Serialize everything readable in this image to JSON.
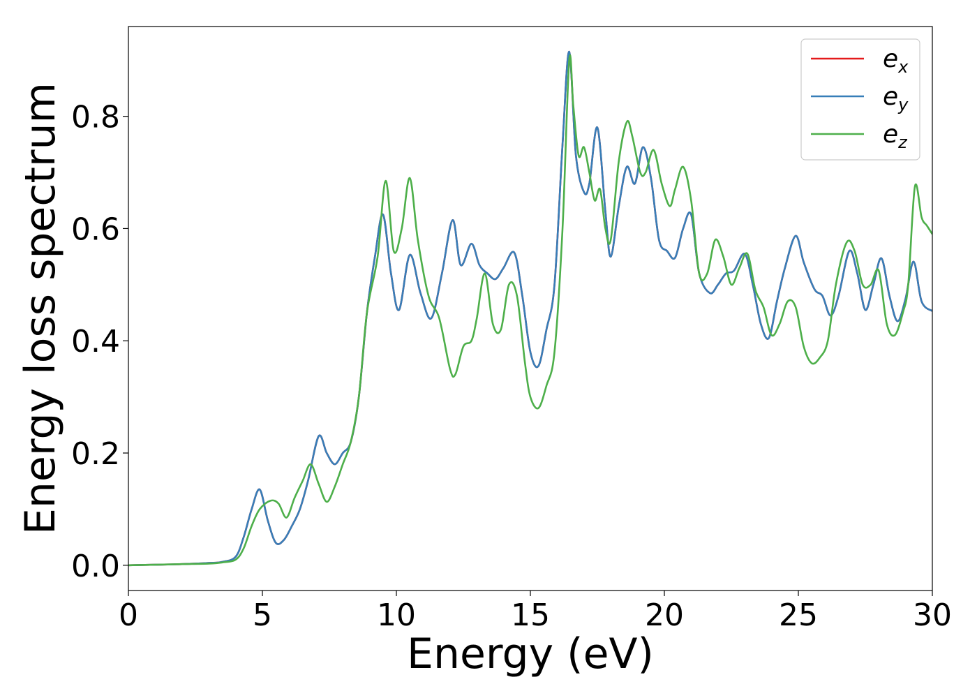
{
  "chart_data": {
    "type": "line",
    "xlabel": "Energy (eV)",
    "ylabel": "Energy loss spectrum",
    "xlim": [
      0,
      30
    ],
    "ylim": [
      -0.045,
      0.96
    ],
    "xticks": [
      0,
      5,
      10,
      15,
      20,
      25,
      30
    ],
    "xtick_labels": [
      "0",
      "5",
      "10",
      "15",
      "20",
      "25",
      "30"
    ],
    "yticks": [
      0.0,
      0.2,
      0.4,
      0.6,
      0.8
    ],
    "ytick_labels": [
      "0.0",
      "0.2",
      "0.4",
      "0.6",
      "0.8"
    ],
    "grid": false,
    "legend_position": "top-right",
    "series": [
      {
        "name": "e",
        "subscript": "x",
        "color": "#e41a1c",
        "x": [
          0,
          1,
          2,
          3,
          3.5,
          4,
          4.3,
          4.6,
          4.9,
          5.2,
          5.5,
          5.8,
          6.1,
          6.4,
          6.7,
          7.1,
          7.4,
          7.7,
          8.0,
          8.3,
          8.6,
          8.9,
          9.2,
          9.5,
          9.8,
          10.1,
          10.5,
          10.9,
          11.3,
          11.7,
          12.1,
          12.4,
          12.8,
          13.1,
          13.4,
          13.7,
          14.0,
          14.4,
          14.7,
          15.0,
          15.3,
          15.6,
          15.9,
          16.2,
          16.45,
          16.7,
          17.0,
          17.2,
          17.5,
          17.8,
          18.0,
          18.3,
          18.6,
          18.9,
          19.2,
          19.5,
          19.8,
          20.1,
          20.4,
          20.7,
          21.0,
          21.3,
          21.7,
          22.0,
          22.3,
          22.6,
          23.0,
          23.3,
          23.6,
          23.9,
          24.2,
          24.5,
          24.9,
          25.2,
          25.6,
          25.9,
          26.2,
          26.5,
          26.9,
          27.2,
          27.5,
          27.8,
          28.1,
          28.4,
          28.7,
          29.0,
          29.3,
          29.6,
          30.0
        ],
        "values": [
          0,
          0.001,
          0.002,
          0.004,
          0.006,
          0.015,
          0.05,
          0.1,
          0.135,
          0.08,
          0.04,
          0.045,
          0.07,
          0.1,
          0.15,
          0.23,
          0.2,
          0.18,
          0.2,
          0.22,
          0.3,
          0.45,
          0.55,
          0.625,
          0.52,
          0.455,
          0.553,
          0.485,
          0.44,
          0.52,
          0.615,
          0.535,
          0.573,
          0.535,
          0.52,
          0.51,
          0.53,
          0.557,
          0.48,
          0.38,
          0.355,
          0.42,
          0.5,
          0.75,
          0.915,
          0.73,
          0.665,
          0.68,
          0.78,
          0.63,
          0.55,
          0.64,
          0.71,
          0.68,
          0.745,
          0.69,
          0.58,
          0.56,
          0.548,
          0.6,
          0.625,
          0.52,
          0.485,
          0.5,
          0.52,
          0.525,
          0.555,
          0.5,
          0.43,
          0.405,
          0.47,
          0.53,
          0.587,
          0.54,
          0.492,
          0.48,
          0.445,
          0.48,
          0.56,
          0.52,
          0.455,
          0.5,
          0.547,
          0.48,
          0.435,
          0.475,
          0.541,
          0.47,
          0.453
        ]
      },
      {
        "name": "e",
        "subscript": "y",
        "color": "#377eb8",
        "x": [
          0,
          1,
          2,
          3,
          3.5,
          4,
          4.3,
          4.6,
          4.9,
          5.2,
          5.5,
          5.8,
          6.1,
          6.4,
          6.7,
          7.1,
          7.4,
          7.7,
          8.0,
          8.3,
          8.6,
          8.9,
          9.2,
          9.5,
          9.8,
          10.1,
          10.5,
          10.9,
          11.3,
          11.7,
          12.1,
          12.4,
          12.8,
          13.1,
          13.4,
          13.7,
          14.0,
          14.4,
          14.7,
          15.0,
          15.3,
          15.6,
          15.9,
          16.2,
          16.45,
          16.7,
          17.0,
          17.2,
          17.5,
          17.8,
          18.0,
          18.3,
          18.6,
          18.9,
          19.2,
          19.5,
          19.8,
          20.1,
          20.4,
          20.7,
          21.0,
          21.3,
          21.7,
          22.0,
          22.3,
          22.6,
          23.0,
          23.3,
          23.6,
          23.9,
          24.2,
          24.5,
          24.9,
          25.2,
          25.6,
          25.9,
          26.2,
          26.5,
          26.9,
          27.2,
          27.5,
          27.8,
          28.1,
          28.4,
          28.7,
          29.0,
          29.3,
          29.6,
          30.0
        ],
        "values": [
          0,
          0.001,
          0.002,
          0.004,
          0.006,
          0.015,
          0.05,
          0.1,
          0.135,
          0.08,
          0.04,
          0.045,
          0.07,
          0.1,
          0.15,
          0.23,
          0.2,
          0.18,
          0.2,
          0.22,
          0.3,
          0.45,
          0.55,
          0.625,
          0.52,
          0.455,
          0.553,
          0.485,
          0.44,
          0.52,
          0.615,
          0.535,
          0.573,
          0.535,
          0.52,
          0.51,
          0.53,
          0.557,
          0.48,
          0.38,
          0.355,
          0.42,
          0.5,
          0.75,
          0.915,
          0.73,
          0.665,
          0.68,
          0.78,
          0.63,
          0.55,
          0.64,
          0.71,
          0.68,
          0.745,
          0.69,
          0.58,
          0.56,
          0.548,
          0.6,
          0.625,
          0.52,
          0.485,
          0.5,
          0.52,
          0.525,
          0.555,
          0.5,
          0.43,
          0.405,
          0.47,
          0.53,
          0.587,
          0.54,
          0.492,
          0.48,
          0.445,
          0.48,
          0.56,
          0.52,
          0.455,
          0.5,
          0.547,
          0.48,
          0.435,
          0.475,
          0.541,
          0.47,
          0.453
        ]
      },
      {
        "name": "e",
        "subscript": "z",
        "color": "#4daf4a",
        "x": [
          0,
          1,
          2,
          3,
          3.5,
          4,
          4.3,
          4.6,
          4.9,
          5.3,
          5.6,
          5.9,
          6.2,
          6.5,
          6.8,
          7.1,
          7.4,
          7.7,
          8.0,
          8.3,
          8.6,
          8.9,
          9.3,
          9.6,
          9.9,
          10.2,
          10.5,
          10.8,
          11.2,
          11.6,
          12.0,
          12.2,
          12.5,
          12.8,
          13.0,
          13.3,
          13.6,
          13.9,
          14.2,
          14.5,
          14.8,
          15.0,
          15.3,
          15.6,
          15.9,
          16.2,
          16.45,
          16.6,
          16.8,
          17.0,
          17.2,
          17.4,
          17.6,
          17.8,
          18.0,
          18.3,
          18.6,
          18.8,
          19.1,
          19.3,
          19.6,
          19.9,
          20.2,
          20.4,
          20.7,
          21.0,
          21.3,
          21.6,
          21.9,
          22.2,
          22.5,
          22.8,
          23.1,
          23.4,
          23.7,
          24.0,
          24.3,
          24.6,
          24.9,
          25.2,
          25.5,
          25.8,
          26.1,
          26.4,
          26.8,
          27.1,
          27.4,
          27.7,
          28.0,
          28.3,
          28.6,
          28.9,
          29.1,
          29.35,
          29.6,
          29.8,
          30.0
        ],
        "values": [
          0,
          0.001,
          0.002,
          0.003,
          0.005,
          0.01,
          0.03,
          0.07,
          0.1,
          0.115,
          0.11,
          0.085,
          0.12,
          0.15,
          0.18,
          0.145,
          0.113,
          0.14,
          0.18,
          0.22,
          0.3,
          0.45,
          0.55,
          0.685,
          0.56,
          0.6,
          0.69,
          0.58,
          0.48,
          0.44,
          0.35,
          0.34,
          0.39,
          0.4,
          0.44,
          0.52,
          0.43,
          0.42,
          0.5,
          0.48,
          0.36,
          0.3,
          0.28,
          0.32,
          0.38,
          0.6,
          0.9,
          0.82,
          0.73,
          0.745,
          0.7,
          0.65,
          0.67,
          0.6,
          0.58,
          0.72,
          0.79,
          0.765,
          0.7,
          0.7,
          0.74,
          0.68,
          0.64,
          0.67,
          0.71,
          0.65,
          0.52,
          0.52,
          0.58,
          0.55,
          0.5,
          0.53,
          0.555,
          0.49,
          0.46,
          0.41,
          0.43,
          0.47,
          0.46,
          0.39,
          0.36,
          0.37,
          0.4,
          0.5,
          0.575,
          0.56,
          0.5,
          0.5,
          0.525,
          0.43,
          0.41,
          0.45,
          0.5,
          0.675,
          0.62,
          0.605,
          0.59
        ]
      }
    ]
  }
}
